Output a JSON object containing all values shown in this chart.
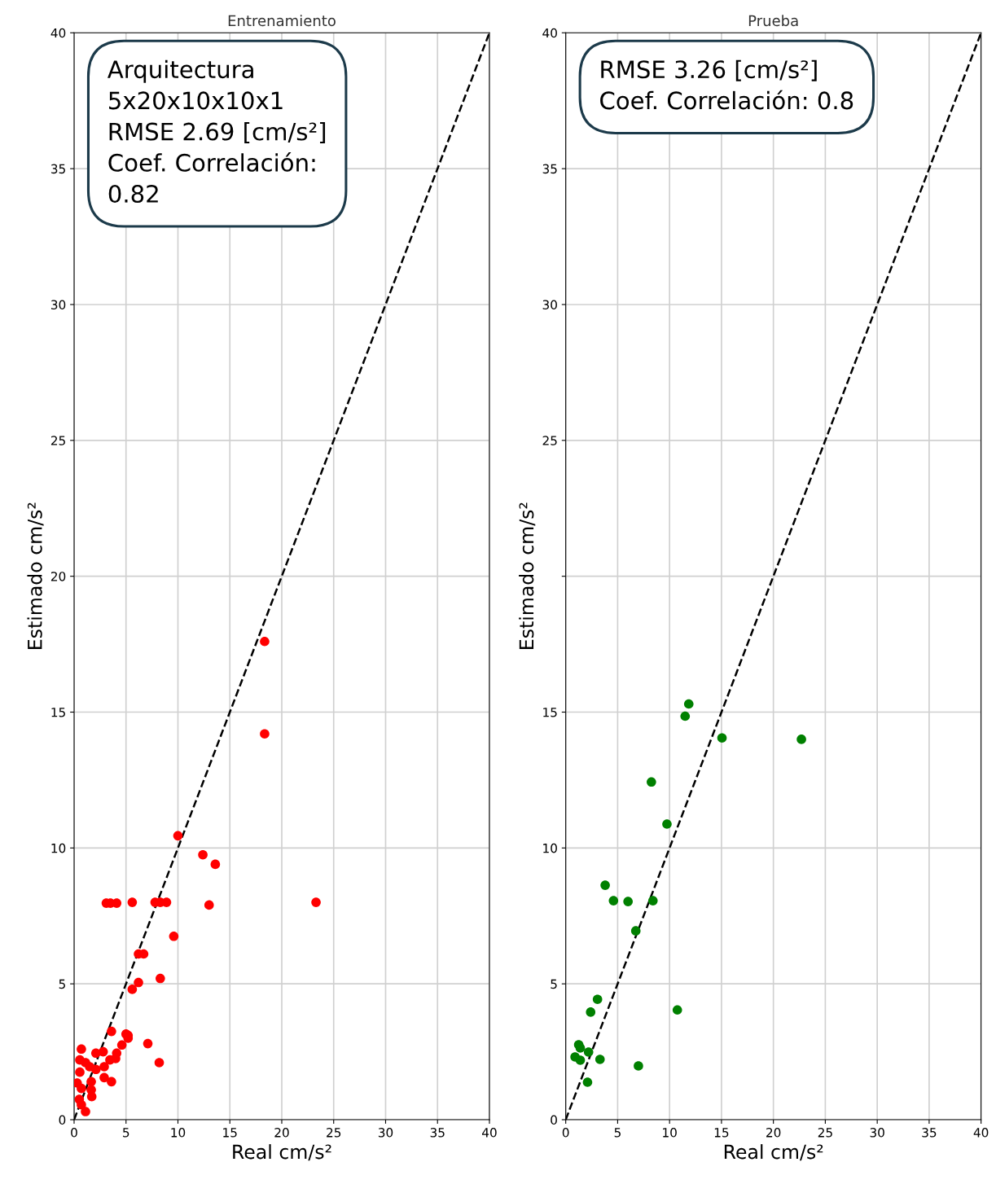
{
  "chart_data": [
    {
      "type": "scatter",
      "title": "Entrenamiento",
      "xlabel": "Real cm/s²",
      "ylabel": "Estimado cm/s²",
      "annotations": [
        "Arquitectura\n5x20x10x10x1\nRMSE 2.69 [cm/s²]\nCoef. Correlación:\n0.82"
      ],
      "xlim": [
        0,
        40
      ],
      "ylim": [
        0,
        40
      ],
      "xticks": [
        0,
        5,
        10,
        15,
        20,
        25,
        30,
        35,
        40
      ],
      "yticks": [
        0,
        5,
        10,
        15,
        20,
        25,
        30,
        35,
        40
      ],
      "grid": true,
      "marker": "circle",
      "series": [
        {
          "color": "#ff0000",
          "x": [
            18.35,
            18.35,
            10.0,
            12.4,
            13.6,
            3.1,
            3.5,
            4.1,
            5.6,
            7.8,
            8.3,
            8.9,
            13.0,
            23.3,
            9.6,
            6.2,
            6.7,
            6.2,
            5.6,
            8.3,
            5.0,
            5.2,
            7.1,
            8.2,
            3.6,
            0.7,
            0.55,
            1.1,
            1.5,
            0.55,
            2.1,
            2.8,
            2.1,
            2.9,
            3.45,
            4.0,
            4.1,
            4.6,
            5.2,
            2.9,
            3.6,
            0.3,
            0.7,
            1.65,
            1.65,
            1.7,
            0.7,
            1.1,
            0.5
          ],
          "values": [
            17.6,
            14.2,
            10.45,
            9.75,
            9.4,
            7.97,
            7.97,
            7.97,
            8.0,
            8.0,
            8.0,
            8.0,
            7.9,
            8.0,
            6.75,
            6.1,
            6.1,
            5.05,
            4.8,
            5.2,
            3.15,
            3.0,
            2.8,
            2.1,
            3.25,
            2.6,
            2.2,
            2.1,
            1.95,
            1.75,
            2.45,
            2.5,
            1.85,
            1.95,
            2.2,
            2.25,
            2.45,
            2.75,
            3.1,
            1.55,
            1.4,
            1.35,
            1.15,
            1.4,
            1.1,
            0.85,
            0.55,
            0.3,
            0.75
          ]
        },
        {
          "type": "line",
          "color": "#000000",
          "line_style": "dashed",
          "marker": "none",
          "x": [
            0,
            40
          ],
          "values": [
            0,
            40
          ]
        }
      ]
    },
    {
      "type": "scatter",
      "title": "Prueba",
      "xlabel": "Real cm/s²",
      "ylabel": "Estimado cm/s²",
      "annotations": [
        "RMSE 3.26 [cm/s²]\nCoef. Correlación: 0.8"
      ],
      "xlim": [
        0,
        40
      ],
      "ylim": [
        0,
        40
      ],
      "xticks": [
        0,
        5,
        10,
        15,
        20,
        25,
        30,
        35,
        40
      ],
      "yticks": [
        0,
        5,
        10,
        15,
        {
          "value": 20,
          "label": null
        },
        25,
        30,
        35,
        40
      ],
      "grid": true,
      "marker": "circle",
      "series": [
        {
          "color": "#008000",
          "x": [
            11.85,
            11.5,
            15.05,
            22.7,
            8.25,
            9.75,
            3.8,
            4.6,
            6.0,
            8.4,
            6.75,
            3.06,
            2.4,
            10.75,
            1.25,
            1.4,
            2.2,
            0.9,
            1.4,
            3.3,
            7.0,
            2.1
          ],
          "values": [
            15.3,
            14.85,
            14.05,
            14.0,
            12.43,
            10.88,
            8.63,
            8.06,
            8.03,
            8.06,
            6.95,
            4.43,
            3.96,
            4.04,
            2.76,
            2.64,
            2.49,
            2.31,
            2.19,
            2.22,
            1.98,
            1.38
          ]
        },
        {
          "type": "line",
          "color": "#000000",
          "line_style": "dashed",
          "marker": "none",
          "x": [
            0,
            40
          ],
          "values": [
            0,
            40
          ]
        }
      ]
    }
  ]
}
